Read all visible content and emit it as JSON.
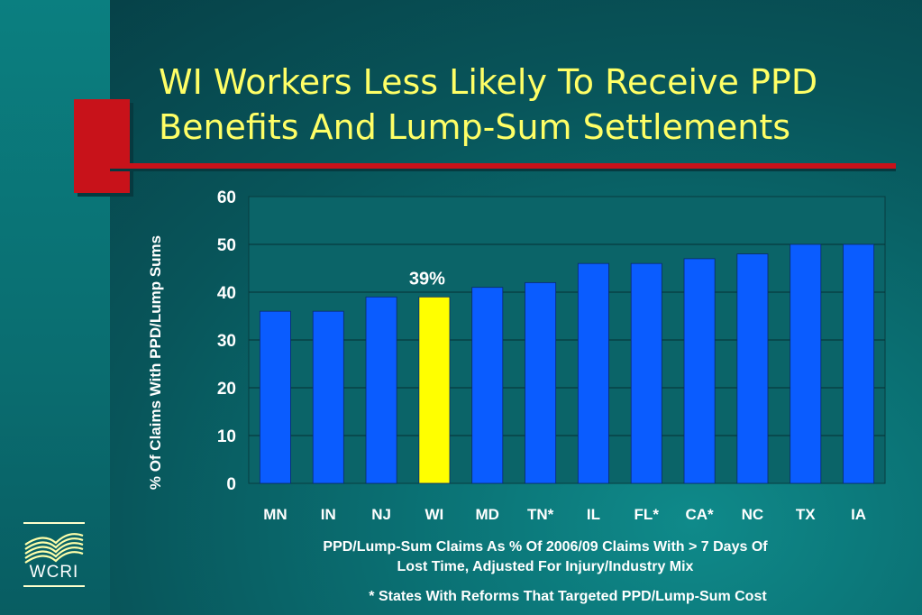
{
  "title_line1": "WI Workers Less Likely To Receive PPD",
  "title_line2": "Benefits And Lump-Sum Settlements",
  "footnote_line1": "PPD/Lump-Sum Claims As % Of 2006/09 Claims With > 7 Days Of",
  "footnote_line2": "Lost Time, Adjusted For Injury/Industry Mix",
  "footnote_reforms": "* States With Reforms That Targeted PPD/Lump-Sum Cost",
  "logo_text": "WCRI",
  "colors": {
    "bar_default": "#0a5cff",
    "bar_highlight": "#ffff00",
    "title": "#ffff66",
    "accent_red": "#c8121a",
    "plot_background": "#0b6468"
  },
  "chart_data": {
    "type": "bar",
    "categories": [
      "MN",
      "IN",
      "NJ",
      "WI",
      "MD",
      "TN*",
      "IL",
      "FL*",
      "CA*",
      "NC",
      "TX",
      "IA"
    ],
    "values": [
      36,
      36,
      39,
      39,
      41,
      42,
      46,
      46,
      47,
      48,
      50,
      50
    ],
    "highlight_category": "WI",
    "data_labels": [
      {
        "category": "WI",
        "text": "39%"
      }
    ],
    "ylabel": "% Of Claims With PPD/Lump Sums",
    "xlabel": "",
    "ylim": [
      0,
      60
    ],
    "yticks": [
      0,
      10,
      20,
      30,
      40,
      50,
      60
    ],
    "grid": true,
    "legend": "none"
  }
}
